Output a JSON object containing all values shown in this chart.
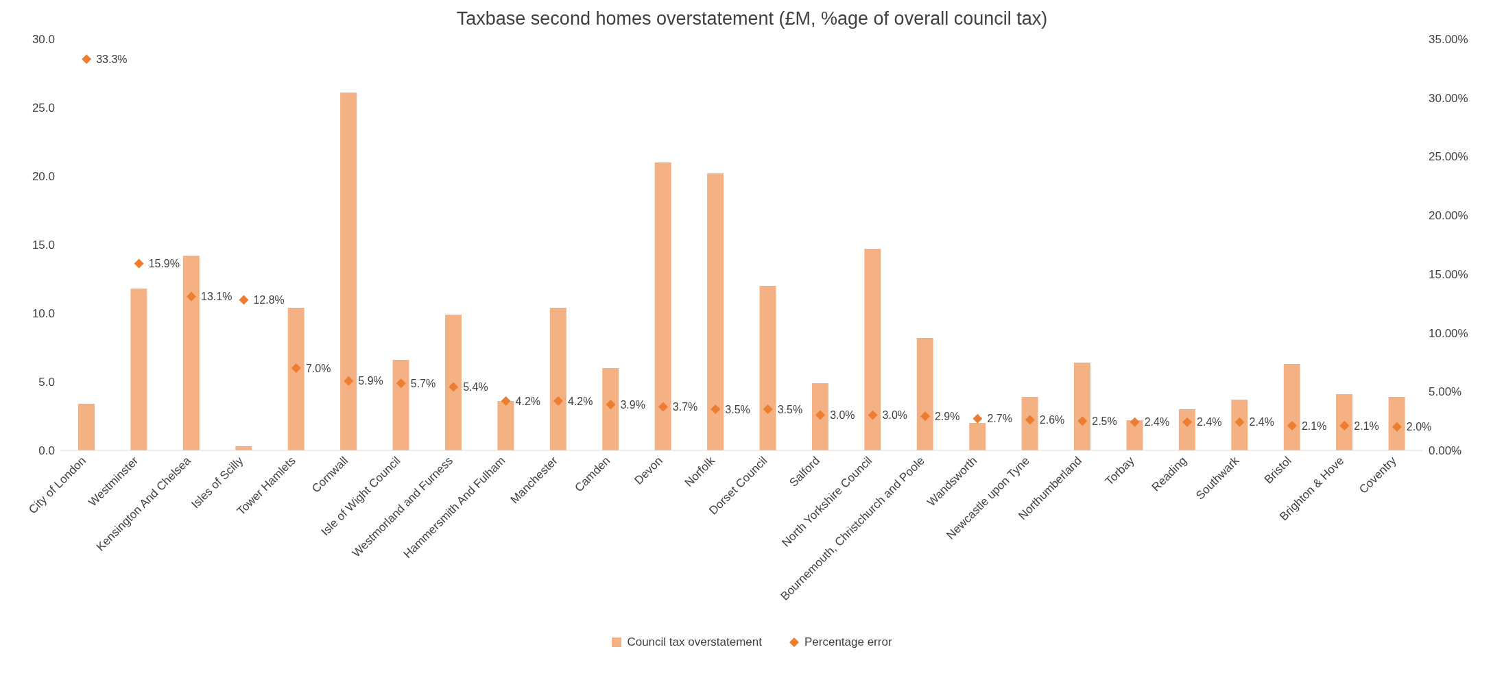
{
  "chart_data": {
    "type": "bar",
    "title": "Taxbase second homes overstatement (£M, %age of overall council tax)",
    "categories": [
      "City of London",
      "Westminster",
      "Kensington And Chelsea",
      "Isles of Scilly",
      "Tower Hamlets",
      "Cornwall",
      "Isle of Wight Council",
      "Westmorland and Furness",
      "Hammersmith And Fulham",
      "Manchester",
      "Camden",
      "Devon",
      "Norfolk",
      "Dorset Council",
      "Salford",
      "North Yorkshire Council",
      "Bournemouth, Christchurch and Poole",
      "Wandsworth",
      "Newcastle upon Tyne",
      "Northumberland",
      "Torbay",
      "Reading",
      "Southwark",
      "Bristol",
      "Brighton & Hove",
      "Coventry"
    ],
    "series": [
      {
        "name": "Council tax overstatement",
        "color": "#f4b183",
        "values": [
          3.4,
          11.8,
          14.2,
          0.3,
          10.4,
          26.1,
          6.6,
          9.9,
          3.6,
          10.4,
          6.0,
          21.0,
          20.2,
          12.0,
          4.9,
          14.7,
          8.2,
          2.0,
          3.9,
          6.4,
          2.2,
          3.0,
          3.7,
          6.3,
          4.1,
          3.9
        ]
      },
      {
        "name": "Percentage error",
        "type": "scatter",
        "axis": "y2",
        "marker": "diamond",
        "color": "#ed7d31",
        "values": [
          33.3,
          15.9,
          13.1,
          12.8,
          7.0,
          5.9,
          5.7,
          5.4,
          4.2,
          4.2,
          3.9,
          3.7,
          3.5,
          3.5,
          3.0,
          3.0,
          2.9,
          2.7,
          2.6,
          2.5,
          2.4,
          2.4,
          2.4,
          2.1,
          2.1,
          2.0
        ],
        "value_labels": [
          "33.3%",
          "15.9%",
          "13.1%",
          "12.8%",
          "7.0%",
          "5.9%",
          "5.7%",
          "5.4%",
          "4.2%",
          "4.2%",
          "3.9%",
          "3.7%",
          "3.5%",
          "3.5%",
          "3.0%",
          "3.0%",
          "2.9%",
          "2.7%",
          "2.6%",
          "2.5%",
          "2.4%",
          "2.4%",
          "2.4%",
          "2.1%",
          "2.1%",
          "2.0%"
        ]
      }
    ],
    "ylim": [
      0,
      30
    ],
    "yticks": [
      {
        "value": 0,
        "label": "0.0"
      },
      {
        "value": 5,
        "label": "5.0"
      },
      {
        "value": 10,
        "label": "10.0"
      },
      {
        "value": 15,
        "label": "15.0"
      },
      {
        "value": 20,
        "label": "20.0"
      },
      {
        "value": 25,
        "label": "25.0"
      },
      {
        "value": 30,
        "label": "30.0"
      }
    ],
    "y2lim": [
      0,
      35
    ],
    "y2ticks": [
      {
        "value": 0,
        "label": "0.00%"
      },
      {
        "value": 5,
        "label": "5.00%"
      },
      {
        "value": 10,
        "label": "10.00%"
      },
      {
        "value": 15,
        "label": "15.00%"
      },
      {
        "value": 20,
        "label": "20.00%"
      },
      {
        "value": 25,
        "label": "25.00%"
      },
      {
        "value": 30,
        "label": "30.00%"
      },
      {
        "value": 35,
        "label": "35.00%"
      }
    ],
    "legend": "bottom",
    "grid": false
  }
}
